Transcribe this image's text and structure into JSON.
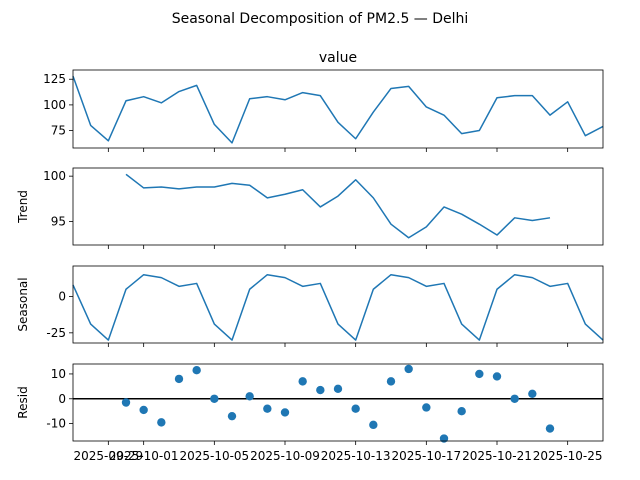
{
  "figure": {
    "title": "Seasonal Decomposition of PM2.5 — Delhi"
  },
  "chart_data": {
    "type": "line",
    "title": "Seasonal Decomposition of PM2.5 — Delhi",
    "x": [
      "2025-09-27",
      "2025-09-28",
      "2025-09-29",
      "2025-09-30",
      "2025-10-01",
      "2025-10-02",
      "2025-10-03",
      "2025-10-04",
      "2025-10-05",
      "2025-10-06",
      "2025-10-07",
      "2025-10-08",
      "2025-10-09",
      "2025-10-10",
      "2025-10-11",
      "2025-10-12",
      "2025-10-13",
      "2025-10-14",
      "2025-10-15",
      "2025-10-16",
      "2025-10-17",
      "2025-10-18",
      "2025-10-19",
      "2025-10-20",
      "2025-10-21",
      "2025-10-22",
      "2025-10-23",
      "2025-10-24",
      "2025-10-25",
      "2025-10-26",
      "2025-10-27"
    ],
    "x_ticks": [
      "2025-09-29",
      "2025-10-01",
      "2025-10-05",
      "2025-10-09",
      "2025-10-13",
      "2025-10-17",
      "2025-10-21",
      "2025-10-25"
    ],
    "x_tick_labels": [
      "2025-09-29",
      "2025-10-01",
      "2025-10-05",
      "2025-10-09",
      "2025-10-13",
      "2025-10-17",
      "2025-10-21",
      "2025-10-25"
    ],
    "panels": [
      {
        "title": "value",
        "ylabel": "",
        "kind": "line",
        "color": "#1f77b4",
        "ylim": [
          58,
          134
        ],
        "yticks": [
          75,
          100,
          125
        ],
        "values": [
          128,
          80,
          65,
          104,
          108,
          102,
          113,
          119,
          81,
          63,
          106,
          108,
          105,
          112,
          109,
          83,
          67,
          93,
          116,
          118,
          98,
          90,
          72,
          75,
          107,
          109,
          109,
          90,
          103,
          70,
          79
        ]
      },
      {
        "title": "",
        "ylabel": "Trend",
        "kind": "line",
        "color": "#1f77b4",
        "ylim": [
          92.4,
          100.9
        ],
        "yticks": [
          95,
          100
        ],
        "values": [
          null,
          null,
          null,
          100.2,
          98.7,
          98.8,
          98.6,
          98.8,
          98.8,
          99.2,
          99.0,
          97.6,
          98.0,
          98.5,
          96.6,
          97.8,
          99.6,
          97.6,
          94.7,
          93.2,
          94.4,
          96.6,
          95.8,
          94.7,
          93.5,
          95.4,
          95.1,
          95.4,
          null,
          null,
          null
        ]
      },
      {
        "title": "",
        "ylabel": "Seasonal",
        "kind": "line",
        "color": "#1f77b4",
        "ylim": [
          -32,
          21
        ],
        "yticks": [
          -25,
          0
        ],
        "values": [
          8,
          -19,
          -30,
          5,
          15,
          13,
          7,
          9,
          -19,
          -30,
          5,
          15,
          13,
          7,
          9,
          -19,
          -30,
          5,
          15,
          13,
          7,
          9,
          -19,
          -30,
          5,
          15,
          13,
          7,
          9,
          -19,
          -30
        ]
      },
      {
        "title": "",
        "ylabel": "Resid",
        "kind": "scatter",
        "color": "#1f77b4",
        "zero_line": true,
        "ylim": [
          -17,
          14
        ],
        "yticks": [
          -10,
          0,
          10
        ],
        "values": [
          null,
          null,
          null,
          -1.5,
          -4.5,
          -9.5,
          8,
          11.5,
          0,
          -7,
          1,
          -4,
          -5.5,
          7,
          3.5,
          4,
          -4,
          -10.5,
          7,
          12,
          -3.5,
          -16,
          -5,
          10,
          9,
          0,
          2,
          -12,
          null,
          null,
          null
        ]
      }
    ]
  }
}
